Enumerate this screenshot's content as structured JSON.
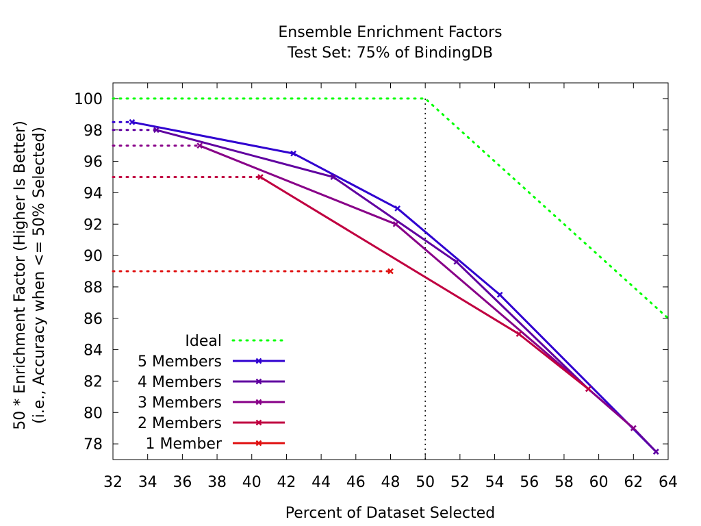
{
  "chart_data": {
    "type": "line",
    "title": "Ensemble Enrichment Factors",
    "subtitle": "Test Set: 75% of BindingDB",
    "xlabel": "Percent of Dataset Selected",
    "ylabel_line1": "50 * Enrichment Factor (Higher Is Better)",
    "ylabel_line2": "(i.e., Accuracy when <= 50% Selected)",
    "xlim": [
      32,
      64
    ],
    "ylim": [
      77,
      101
    ],
    "xticks": [
      32,
      34,
      36,
      38,
      40,
      42,
      44,
      46,
      48,
      50,
      52,
      54,
      56,
      58,
      60,
      62,
      64
    ],
    "yticks": [
      78,
      80,
      82,
      84,
      86,
      88,
      90,
      92,
      94,
      96,
      98,
      100
    ],
    "grid": false,
    "legend_position": "bottom-left",
    "reference_line": {
      "x": 50,
      "style": "dotted",
      "color": "#000000"
    },
    "series": [
      {
        "name": "Ideal",
        "color": "#00ff00",
        "style": "dotted",
        "marker": false,
        "points": [
          [
            32,
            100
          ],
          [
            50,
            100
          ],
          [
            64,
            86
          ]
        ]
      },
      {
        "name": "5 Members",
        "color": "#3000d0",
        "style": "solid",
        "marker": true,
        "points": [
          [
            33.1,
            98.5
          ],
          [
            42.4,
            96.5
          ],
          [
            48.4,
            93.0
          ],
          [
            54.3,
            87.5
          ],
          [
            63.3,
            77.5
          ]
        ],
        "lead_in": {
          "from_x": 32,
          "y": 98.5
        }
      },
      {
        "name": "4 Members",
        "color": "#6000a0",
        "style": "solid",
        "marker": true,
        "points": [
          [
            34.5,
            98.0
          ],
          [
            44.7,
            95.0
          ],
          [
            51.8,
            89.6
          ],
          [
            59.4,
            81.5
          ],
          [
            62.0,
            79.0
          ],
          [
            63.3,
            77.5
          ]
        ],
        "lead_in": {
          "from_x": 32,
          "y": 98.0
        }
      },
      {
        "name": "3 Members",
        "color": "#880088",
        "style": "solid",
        "marker": true,
        "points": [
          [
            37.0,
            97.0
          ],
          [
            48.3,
            92.0
          ],
          [
            59.4,
            81.5
          ],
          [
            62.0,
            79.0
          ]
        ],
        "lead_in": {
          "from_x": 32,
          "y": 97.0
        }
      },
      {
        "name": "2 Members",
        "color": "#c00040",
        "style": "solid",
        "marker": true,
        "points": [
          [
            40.5,
            95.0
          ],
          [
            55.4,
            85.0
          ],
          [
            59.4,
            81.5
          ]
        ],
        "lead_in": {
          "from_x": 32,
          "y": 95.0
        }
      },
      {
        "name": "1 Member",
        "color": "#e01010",
        "style": "solid",
        "marker": true,
        "points": [
          [
            48.0,
            89.0
          ]
        ],
        "lead_in": {
          "from_x": 32,
          "y": 89.0
        }
      }
    ]
  }
}
